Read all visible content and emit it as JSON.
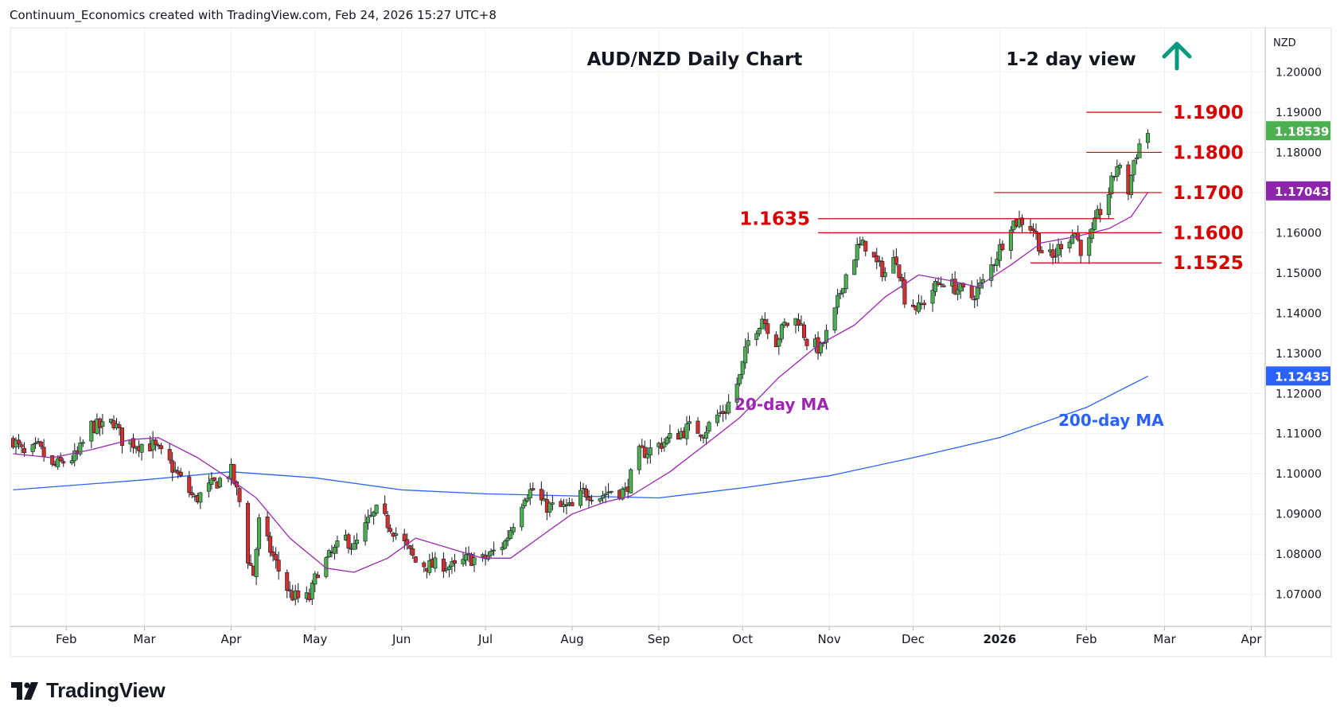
{
  "header": {
    "text": "Continuum_Economics created with TradingView.com, Feb 24, 2026 15:27 UTC+8"
  },
  "footer": {
    "brand": "TradingView"
  },
  "chart_data": {
    "type": "candlestick",
    "title": "AUD/NZD Daily Chart",
    "view_label": "1-2 day view",
    "view_direction": "up",
    "currency_label": "NZD",
    "y_ticks": [
      "1.20000",
      "1.19000",
      "1.18000",
      "1.17000",
      "1.16000",
      "1.15000",
      "1.14000",
      "1.13000",
      "1.12000",
      "1.11000",
      "1.10000",
      "1.09000",
      "1.08000",
      "1.07000"
    ],
    "x_ticks": [
      "Feb",
      "Mar",
      "Apr",
      "May",
      "Jun",
      "Jul",
      "Aug",
      "Sep",
      "Oct",
      "Nov",
      "Dec",
      "2026",
      "Feb",
      "Mar",
      "Apr"
    ],
    "ylim": [
      1.062,
      1.211
    ],
    "x_range": [
      "2025-01-12",
      "2026-04-06"
    ],
    "last_price": {
      "label": "1.18539",
      "value": 1.18539,
      "color": "#4caf50"
    },
    "ma20_tag": {
      "label": "1.17043",
      "value": 1.17043,
      "color": "#8e24aa"
    },
    "ma200_tag": {
      "label": "1.12435",
      "value": 1.12435,
      "color": "#2962ff"
    },
    "ma_labels": {
      "ma20": "20-day MA",
      "ma200": "200-day MA"
    },
    "levels": [
      {
        "label": "1.1900",
        "value": 1.19,
        "from": "2026-02-01",
        "to": "2026-02-28"
      },
      {
        "label": "1.1800",
        "value": 1.18,
        "from": "2026-02-01",
        "to": "2026-02-28"
      },
      {
        "label": "1.1700",
        "value": 1.17,
        "from": "2025-12-30",
        "to": "2026-02-28"
      },
      {
        "label": "1.1635",
        "value": 1.1635,
        "from": "2025-10-28",
        "to": "2026-02-11"
      },
      {
        "label": "1.1600",
        "value": 1.16,
        "from": "2025-10-28",
        "to": "2026-02-28"
      },
      {
        "label": "1.1525",
        "value": 1.1525,
        "from": "2026-01-12",
        "to": "2026-02-28"
      }
    ],
    "colors": {
      "up": "#4caf50",
      "down": "#d32f2f",
      "level": "#d50000",
      "ma20": "#9c27b0",
      "ma200": "#2962ff",
      "arrow": "#089981",
      "grid": "#eef0f3"
    },
    "anchors": [
      [
        "2025-01-13",
        1.1085
      ],
      [
        "2025-01-17",
        1.1045
      ],
      [
        "2025-01-22",
        1.1065
      ],
      [
        "2025-01-27",
        1.1015
      ],
      [
        "2025-01-31",
        1.103
      ],
      [
        "2025-02-05",
        1.1045
      ],
      [
        "2025-02-10",
        1.112
      ],
      [
        "2025-02-14",
        1.1115
      ],
      [
        "2025-02-18",
        1.113
      ],
      [
        "2025-02-21",
        1.1085
      ],
      [
        "2025-02-26",
        1.1075
      ],
      [
        "2025-03-04",
        1.107
      ],
      [
        "2025-03-10",
        1.1025
      ],
      [
        "2025-03-14",
        1.0985
      ],
      [
        "2025-03-19",
        1.0935
      ],
      [
        "2025-03-24",
        1.0965
      ],
      [
        "2025-03-28",
        1.0985
      ],
      [
        "2025-04-01",
        1.1005
      ],
      [
        "2025-04-04",
        1.093
      ],
      [
        "2025-04-07",
        1.079
      ],
      [
        "2025-04-09",
        1.075
      ],
      [
        "2025-04-11",
        1.088
      ],
      [
        "2025-04-15",
        1.081
      ],
      [
        "2025-04-18",
        1.076
      ],
      [
        "2025-04-22",
        1.07
      ],
      [
        "2025-04-25",
        1.069
      ],
      [
        "2025-04-29",
        1.069
      ],
      [
        "2025-05-02",
        1.076
      ],
      [
        "2025-05-07",
        1.08
      ],
      [
        "2025-05-12",
        1.084
      ],
      [
        "2025-05-15",
        1.0815
      ],
      [
        "2025-05-20",
        1.088
      ],
      [
        "2025-05-23",
        1.0905
      ],
      [
        "2025-05-28",
        1.087
      ],
      [
        "2025-06-02",
        1.0825
      ],
      [
        "2025-06-06",
        1.078
      ],
      [
        "2025-06-11",
        1.077
      ],
      [
        "2025-06-16",
        1.0775
      ],
      [
        "2025-06-20",
        1.0765
      ],
      [
        "2025-06-25",
        1.079
      ],
      [
        "2025-06-30",
        1.0785
      ],
      [
        "2025-07-03",
        1.08
      ],
      [
        "2025-07-08",
        1.083
      ],
      [
        "2025-07-11",
        1.088
      ],
      [
        "2025-07-15",
        1.095
      ],
      [
        "2025-07-18",
        1.096
      ],
      [
        "2025-07-22",
        1.092
      ],
      [
        "2025-07-28",
        1.0915
      ],
      [
        "2025-08-01",
        1.0915
      ],
      [
        "2025-08-05",
        1.0955
      ],
      [
        "2025-08-11",
        1.0945
      ],
      [
        "2025-08-15",
        1.096
      ],
      [
        "2025-08-20",
        1.0955
      ],
      [
        "2025-08-25",
        1.105
      ],
      [
        "2025-08-29",
        1.106
      ],
      [
        "2025-09-03",
        1.108
      ],
      [
        "2025-09-08",
        1.11
      ],
      [
        "2025-09-12",
        1.1115
      ],
      [
        "2025-09-17",
        1.1105
      ],
      [
        "2025-09-22",
        1.1145
      ],
      [
        "2025-09-25",
        1.116
      ],
      [
        "2025-09-30",
        1.124
      ],
      [
        "2025-10-03",
        1.133
      ],
      [
        "2025-10-08",
        1.139
      ],
      [
        "2025-10-13",
        1.133
      ],
      [
        "2025-10-16",
        1.137
      ],
      [
        "2025-10-21",
        1.1385
      ],
      [
        "2025-10-24",
        1.133
      ],
      [
        "2025-10-29",
        1.131
      ],
      [
        "2025-11-03",
        1.14
      ],
      [
        "2025-11-06",
        1.148
      ],
      [
        "2025-11-11",
        1.156
      ],
      [
        "2025-11-14",
        1.157
      ],
      [
        "2025-11-18",
        1.152
      ],
      [
        "2025-11-21",
        1.15
      ],
      [
        "2025-11-25",
        1.154
      ],
      [
        "2025-11-28",
        1.144
      ],
      [
        "2025-12-03",
        1.141
      ],
      [
        "2025-12-08",
        1.146
      ],
      [
        "2025-12-12",
        1.148
      ],
      [
        "2025-12-17",
        1.146
      ],
      [
        "2025-12-22",
        1.144
      ],
      [
        "2025-12-26",
        1.1475
      ],
      [
        "2025-12-31",
        1.1545
      ],
      [
        "2026-01-05",
        1.1625
      ],
      [
        "2026-01-09",
        1.163
      ],
      [
        "2026-01-13",
        1.161
      ],
      [
        "2026-01-16",
        1.1555
      ],
      [
        "2026-01-20",
        1.1535
      ],
      [
        "2026-01-23",
        1.1575
      ],
      [
        "2026-01-28",
        1.16
      ],
      [
        "2026-01-30",
        1.156
      ],
      [
        "2026-02-02",
        1.1575
      ],
      [
        "2026-02-05",
        1.164
      ],
      [
        "2026-02-09",
        1.17
      ],
      [
        "2026-02-12",
        1.177
      ],
      [
        "2026-02-16",
        1.1705
      ],
      [
        "2026-02-18",
        1.178
      ],
      [
        "2026-02-20",
        1.182
      ],
      [
        "2026-02-23",
        1.185
      ]
    ],
    "ma20_points": [
      [
        "2025-01-13",
        1.105
      ],
      [
        "2025-01-27",
        1.104
      ],
      [
        "2025-02-10",
        1.106
      ],
      [
        "2025-02-24",
        1.1085
      ],
      [
        "2025-03-06",
        1.109
      ],
      [
        "2025-03-20",
        1.104
      ],
      [
        "2025-04-01",
        1.0985
      ],
      [
        "2025-04-10",
        1.094
      ],
      [
        "2025-04-22",
        1.084
      ],
      [
        "2025-05-05",
        1.0765
      ],
      [
        "2025-05-15",
        1.0755
      ],
      [
        "2025-05-27",
        1.079
      ],
      [
        "2025-06-06",
        1.084
      ],
      [
        "2025-06-18",
        1.0815
      ],
      [
        "2025-06-30",
        1.079
      ],
      [
        "2025-07-10",
        1.079
      ],
      [
        "2025-07-22",
        1.085
      ],
      [
        "2025-08-01",
        1.09
      ],
      [
        "2025-08-13",
        1.093
      ],
      [
        "2025-08-22",
        1.0945
      ],
      [
        "2025-09-05",
        1.1005
      ],
      [
        "2025-09-19",
        1.108
      ],
      [
        "2025-09-30",
        1.114
      ],
      [
        "2025-10-14",
        1.124
      ],
      [
        "2025-10-28",
        1.132
      ],
      [
        "2025-11-10",
        1.137
      ],
      [
        "2025-11-21",
        1.144
      ],
      [
        "2025-12-03",
        1.1495
      ],
      [
        "2025-12-15",
        1.148
      ],
      [
        "2025-12-24",
        1.1465
      ],
      [
        "2026-01-05",
        1.152
      ],
      [
        "2026-01-16",
        1.1575
      ],
      [
        "2026-01-28",
        1.159
      ],
      [
        "2026-02-09",
        1.161
      ],
      [
        "2026-02-17",
        1.164
      ],
      [
        "2026-02-23",
        1.17
      ]
    ],
    "ma200_points": [
      [
        "2025-01-13",
        1.096
      ],
      [
        "2025-03-01",
        1.0985
      ],
      [
        "2025-04-01",
        1.1005
      ],
      [
        "2025-05-01",
        1.099
      ],
      [
        "2025-06-01",
        1.096
      ],
      [
        "2025-07-01",
        1.095
      ],
      [
        "2025-08-01",
        1.0945
      ],
      [
        "2025-09-01",
        1.094
      ],
      [
        "2025-10-01",
        1.0965
      ],
      [
        "2025-11-01",
        1.0995
      ],
      [
        "2025-12-01",
        1.104
      ],
      [
        "2026-01-01",
        1.109
      ],
      [
        "2026-02-01",
        1.1165
      ],
      [
        "2026-02-23",
        1.1243
      ]
    ]
  }
}
